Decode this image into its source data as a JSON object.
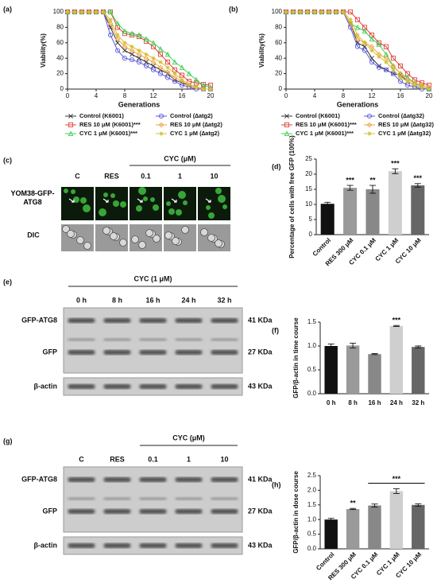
{
  "chart_data": [
    {
      "type": "line",
      "panel": "(a)",
      "xlabel": "Generations",
      "ylabel": "Viability(%)",
      "x": [
        0,
        1,
        2,
        3,
        4,
        5,
        6,
        7,
        8,
        9,
        10,
        11,
        12,
        13,
        14,
        15,
        16,
        17,
        18,
        19,
        20
      ],
      "xlim": [
        0,
        20
      ],
      "xticks": [
        0,
        4,
        8,
        12,
        16,
        20
      ],
      "ylim": [
        0,
        100
      ],
      "yticks": [
        0,
        20,
        40,
        60,
        80,
        100
      ],
      "series": [
        {
          "name": "Control (K6001)",
          "color": "#333333",
          "marker": "x",
          "values": [
            100,
            100,
            100,
            100,
            100,
            100,
            80,
            60,
            50,
            45,
            40,
            35,
            30,
            25,
            20,
            12,
            8,
            5,
            3,
            0,
            0
          ]
        },
        {
          "name": "RES 10 μM (K6001)***",
          "color": "#e0443a",
          "marker": "square",
          "values": [
            100,
            100,
            100,
            100,
            100,
            100,
            100,
            80,
            72,
            70,
            68,
            62,
            55,
            45,
            35,
            25,
            18,
            10,
            8,
            6,
            5
          ]
        },
        {
          "name": "CYC 1 μM (K6001)***",
          "color": "#3fcf55",
          "marker": "triangle",
          "values": [
            100,
            100,
            100,
            100,
            100,
            100,
            100,
            85,
            75,
            72,
            70,
            65,
            60,
            52,
            45,
            35,
            28,
            20,
            12,
            5,
            2
          ]
        },
        {
          "name": "Control (∆atg2)",
          "color": "#5a5ae0",
          "marker": "circle",
          "values": [
            100,
            100,
            100,
            100,
            100,
            100,
            70,
            50,
            40,
            38,
            35,
            30,
            25,
            20,
            15,
            10,
            5,
            3,
            0,
            0,
            0
          ]
        },
        {
          "name": "RES 10 μM (∆atg2)",
          "color": "#f0a040",
          "marker": "diamond",
          "values": [
            100,
            100,
            100,
            100,
            100,
            100,
            85,
            65,
            55,
            50,
            45,
            40,
            35,
            28,
            22,
            15,
            10,
            5,
            2,
            0,
            0
          ]
        },
        {
          "name": "CYC 1 μM (∆atg2)",
          "color": "#d4c030",
          "marker": "star",
          "values": [
            100,
            100,
            100,
            100,
            100,
            100,
            90,
            70,
            60,
            55,
            50,
            45,
            40,
            35,
            28,
            20,
            12,
            6,
            3,
            0,
            0
          ]
        }
      ]
    },
    {
      "type": "line",
      "panel": "(b)",
      "xlabel": "Generations",
      "ylabel": "Viability(%)",
      "x": [
        0,
        1,
        2,
        3,
        4,
        5,
        6,
        7,
        8,
        9,
        10,
        11,
        12,
        13,
        14,
        15,
        16,
        17,
        18,
        19,
        20
      ],
      "xlim": [
        0,
        20
      ],
      "xticks": [
        0,
        4,
        8,
        12,
        16,
        20
      ],
      "ylim": [
        0,
        100
      ],
      "yticks": [
        0,
        20,
        40,
        60,
        80,
        100
      ],
      "series": [
        {
          "name": "Control (K6001)",
          "color": "#333333",
          "marker": "x",
          "values": [
            100,
            100,
            100,
            100,
            100,
            100,
            100,
            100,
            100,
            85,
            60,
            55,
            40,
            30,
            25,
            20,
            18,
            10,
            5,
            2,
            0
          ]
        },
        {
          "name": "RES 10 μM (K6001)***",
          "color": "#e0443a",
          "marker": "square",
          "values": [
            100,
            100,
            100,
            100,
            100,
            100,
            100,
            100,
            100,
            100,
            90,
            80,
            70,
            60,
            55,
            40,
            30,
            20,
            12,
            8,
            5
          ]
        },
        {
          "name": "CYC 1 μM (K6001)***",
          "color": "#3fcf55",
          "marker": "triangle",
          "values": [
            100,
            100,
            100,
            100,
            100,
            100,
            100,
            100,
            100,
            85,
            80,
            75,
            65,
            58,
            45,
            30,
            20,
            15,
            8,
            3,
            0
          ]
        },
        {
          "name": "Control (∆atg32)",
          "color": "#5a5ae0",
          "marker": "circle",
          "values": [
            100,
            100,
            100,
            100,
            100,
            100,
            100,
            100,
            100,
            80,
            55,
            50,
            35,
            28,
            25,
            20,
            10,
            5,
            3,
            0,
            0
          ]
        },
        {
          "name": "RES 10 μM (∆atg32)",
          "color": "#f0a040",
          "marker": "diamond",
          "values": [
            100,
            100,
            100,
            100,
            100,
            100,
            100,
            100,
            100,
            85,
            65,
            60,
            55,
            45,
            40,
            30,
            20,
            12,
            8,
            5,
            2
          ]
        },
        {
          "name": "CYC 1 μM (∆atg32)",
          "color": "#d4c030",
          "marker": "star",
          "values": [
            100,
            100,
            100,
            100,
            100,
            100,
            100,
            100,
            100,
            90,
            70,
            60,
            50,
            42,
            35,
            25,
            15,
            10,
            5,
            2,
            0
          ]
        }
      ]
    },
    {
      "type": "bar",
      "panel": "(d)",
      "ylabel": "Percentage of cells with free GFP (100%)",
      "categories": [
        "Control",
        "RES 300 μM",
        "CYC 0.1 μM",
        "CYC 1 μM",
        "CYC 10 μM"
      ],
      "values": [
        10.2,
        15.5,
        15,
        21,
        16.3
      ],
      "errors": [
        0.5,
        0.8,
        1.3,
        0.8,
        0.6
      ],
      "colors": [
        "#111111",
        "#9a9a9a",
        "#888888",
        "#cfcfcf",
        "#666666"
      ],
      "ylim": [
        0,
        25
      ],
      "yticks": [
        0,
        5,
        10,
        15,
        20,
        25
      ],
      "annotations": [
        {
          "label": "***",
          "span": [
            1,
            1
          ]
        },
        {
          "label": "**",
          "span": [
            2,
            2
          ]
        },
        {
          "label": "***",
          "span": [
            3,
            3
          ]
        },
        {
          "label": "***",
          "span": [
            4,
            4
          ]
        }
      ]
    },
    {
      "type": "bar",
      "panel": "(f)",
      "ylabel": "GFP/β-actin in time course",
      "categories": [
        "0 h",
        "8 h",
        "16 h",
        "24 h",
        "32 h"
      ],
      "values": [
        1.0,
        1.01,
        0.83,
        1.42,
        0.98
      ],
      "errors": [
        0.04,
        0.05,
        0.01,
        0.01,
        0.02
      ],
      "colors": [
        "#111111",
        "#9a9a9a",
        "#888888",
        "#cfcfcf",
        "#666666"
      ],
      "ylim": [
        0,
        1.5
      ],
      "yticks": [
        {
          "value": 0,
          "label": "0.0"
        },
        {
          "value": 0.5,
          "label": "0.5"
        },
        {
          "value": 1,
          "label": "1.0"
        },
        {
          "value": 1.5,
          "label": "1.5"
        }
      ],
      "annotations": [
        {
          "label": "***",
          "span": [
            3,
            3
          ]
        }
      ]
    },
    {
      "type": "bar",
      "panel": "(h)",
      "ylabel": "GFP/β-actin in dose course",
      "categories": [
        "Control",
        "RES 300 μM",
        "CYC 0.1 μM",
        "CYC 1 μM",
        "CYC 10 μM"
      ],
      "values": [
        1.0,
        1.36,
        1.48,
        1.97,
        1.5
      ],
      "errors": [
        0.04,
        0.02,
        0.05,
        0.08,
        0.04
      ],
      "colors": [
        "#111111",
        "#9a9a9a",
        "#888888",
        "#cfcfcf",
        "#666666"
      ],
      "ylim": [
        0,
        2.5
      ],
      "yticks": [
        {
          "value": 0,
          "label": "0.0"
        },
        {
          "value": 0.5,
          "label": "0.5"
        },
        {
          "value": 1,
          "label": "1.0"
        },
        {
          "value": 1.5,
          "label": "1.5"
        },
        {
          "value": 2,
          "label": "2.0"
        },
        {
          "value": 2.5,
          "label": "2.5"
        }
      ],
      "annotations": [
        {
          "label": "**",
          "span": [
            1,
            1
          ]
        },
        {
          "label": "***",
          "span": [
            2,
            4
          ]
        }
      ]
    }
  ],
  "microscopy": {
    "panel": "(c)",
    "group_label": "CYC (μM)",
    "group_lanes": [
      2,
      4
    ],
    "lanes": [
      "C",
      "RES",
      "0.1",
      "1",
      "10"
    ],
    "rows": [
      "YOM38-GFP-ATG8",
      "DIC"
    ]
  },
  "blots": [
    {
      "panel": "(e)",
      "group_label": "CYC (1 μM)",
      "group_lanes": [
        0,
        4
      ],
      "lanes": [
        "0 h",
        "8 h",
        "16 h",
        "24 h",
        "32 h"
      ],
      "rows": [
        "GFP-ATG8",
        "GFP",
        "β-actin"
      ],
      "sizes": [
        "41 KDa",
        "27 KDa",
        "43 KDa"
      ]
    },
    {
      "panel": "(g)",
      "group_label": "CYC (μM)",
      "group_lanes": [
        2,
        4
      ],
      "lanes": [
        "C",
        "RES",
        "0.1",
        "1",
        "10"
      ],
      "rows": [
        "GFP-ATG8",
        "GFP",
        "β-actin"
      ],
      "sizes": [
        "41 KDa",
        "27 KDa",
        "43 KDa"
      ]
    }
  ]
}
